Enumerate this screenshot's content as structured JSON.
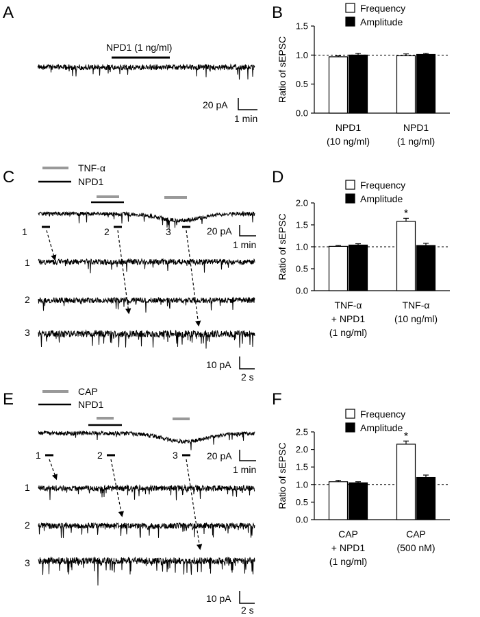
{
  "panels": {
    "A": {
      "letter": "A",
      "drug_label": "NPD1 (1 ng/ml)",
      "scale_y": "20 pA",
      "scale_x": "1 min"
    },
    "C": {
      "letter": "C",
      "legend_gray": "TNF-α",
      "legend_black": "NPD1",
      "segment_labels": [
        "1",
        "2",
        "3"
      ],
      "scale_top_y": "20 pA",
      "scale_top_x": "1 min",
      "scale_bottom_y": "10 pA",
      "scale_bottom_x": "2 s"
    },
    "E": {
      "letter": "E",
      "legend_gray": "CAP",
      "legend_black": "NPD1",
      "segment_labels": [
        "1",
        "2",
        "3"
      ],
      "scale_top_y": "20 pA",
      "scale_top_x": "1 min",
      "scale_bottom_y": "10 pA",
      "scale_bottom_x": "2 s"
    }
  },
  "colors": {
    "gray_bar": "#999999",
    "black": "#000000",
    "white": "#ffffff"
  },
  "chart_data": [
    {
      "panel": "B",
      "type": "bar",
      "ylabel": "Ratio of sEPSC",
      "ylim": [
        0,
        1.5
      ],
      "yticks": [
        "0.0",
        "0.5",
        "1.0",
        "1.5"
      ],
      "reference_line": 1.0,
      "legend": [
        "Frequency",
        "Amplitude"
      ],
      "legend_position": "top-left",
      "categories": [
        [
          "NPD1",
          "(10 ng/ml)"
        ],
        [
          "NPD1",
          "(1 ng/ml)"
        ]
      ],
      "series": [
        {
          "name": "Frequency",
          "fill": "white",
          "values": [
            0.97,
            0.99
          ],
          "errors": [
            0.02,
            0.03
          ]
        },
        {
          "name": "Amplitude",
          "fill": "black",
          "values": [
            1.0,
            1.01
          ],
          "errors": [
            0.03,
            0.02
          ]
        }
      ],
      "annotations": []
    },
    {
      "panel": "D",
      "type": "bar",
      "ylabel": "Ratio of sEPSC",
      "ylim": [
        0,
        2.0
      ],
      "yticks": [
        "0.0",
        "0.5",
        "1.0",
        "1.5",
        "2.0"
      ],
      "reference_line": 1.0,
      "legend": [
        "Frequency",
        "Amplitude"
      ],
      "legend_position": "top-left",
      "categories": [
        [
          "TNF-α",
          "+ NPD1",
          "(1 ng/ml)"
        ],
        [
          "TNF-α",
          "(10 ng/ml)"
        ]
      ],
      "series": [
        {
          "name": "Frequency",
          "fill": "white",
          "values": [
            1.01,
            1.58
          ],
          "errors": [
            0.02,
            0.07
          ]
        },
        {
          "name": "Amplitude",
          "fill": "black",
          "values": [
            1.04,
            1.03
          ],
          "errors": [
            0.03,
            0.05
          ]
        }
      ],
      "annotations": [
        {
          "text": "*",
          "series": 0,
          "category": 1
        }
      ]
    },
    {
      "panel": "F",
      "type": "bar",
      "ylabel": "Ratio of sEPSC",
      "ylim": [
        0,
        2.5
      ],
      "yticks": [
        "0.0",
        "0.5",
        "1.0",
        "1.5",
        "2.0",
        "2.5"
      ],
      "reference_line": 1.0,
      "legend": [
        "Frequency",
        "Amplitude"
      ],
      "legend_position": "top-left",
      "categories": [
        [
          "CAP",
          "+ NPD1",
          "(1 ng/ml)"
        ],
        [
          "CAP",
          "(500 nM)"
        ]
      ],
      "series": [
        {
          "name": "Frequency",
          "fill": "white",
          "values": [
            1.08,
            2.15
          ],
          "errors": [
            0.04,
            0.09
          ]
        },
        {
          "name": "Amplitude",
          "fill": "black",
          "values": [
            1.05,
            1.2
          ],
          "errors": [
            0.03,
            0.07
          ]
        }
      ],
      "annotations": [
        {
          "text": "*",
          "series": 0,
          "category": 1
        }
      ]
    }
  ]
}
